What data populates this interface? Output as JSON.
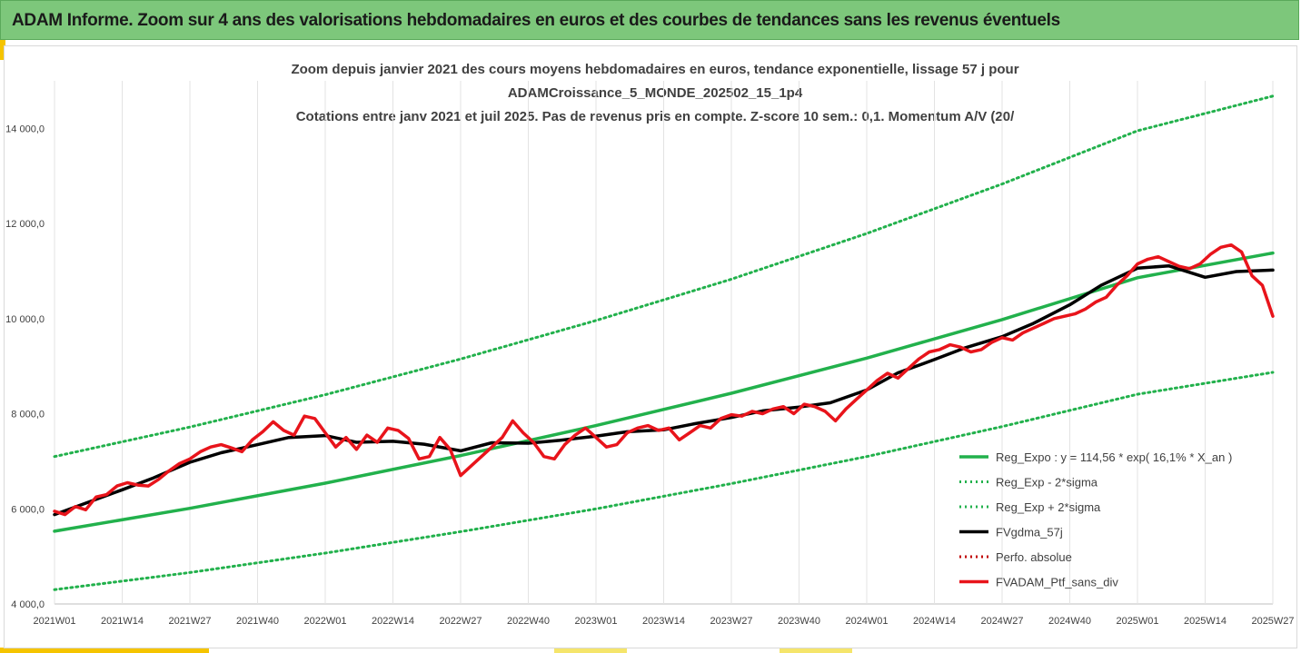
{
  "banner": {
    "title": "ADAM Informe. Zoom sur 4 ans des valorisations hebdomadaires en euros et des courbes de tendances sans les revenus éventuels"
  },
  "colors": {
    "banner_bg": "#7dc77b",
    "accent": "#f5c400",
    "trend_green": "#22b14c",
    "smooth_black": "#000000",
    "portfolio_red": "#e8141b",
    "perf_red": "#c00000"
  },
  "chart_data": {
    "type": "line",
    "title_lines": [
      "Zoom depuis janvier 2021 des cours moyens hebdomadaires  en euros, tendance exponentielle, lissage 57 j pour",
      "ADAMCroissance_5_MONDE_202502_15_1p4",
      "Cotations entre janv 2021 et juil 2025. Pas de revenus pris en compte. Z-score 10 sem.: 0,1. Momentum A/V (20/"
    ],
    "x_tick_labels": [
      "2021W01",
      "2021W14",
      "2021W27",
      "2021W40",
      "2022W01",
      "2022W14",
      "2022W27",
      "2022W40",
      "2023W01",
      "2023W14",
      "2023W27",
      "2023W40",
      "2024W01",
      "2024W14",
      "2024W27",
      "2024W40",
      "2025W01",
      "2025W14",
      "2025W27"
    ],
    "y_tick_labels": [
      "4 000,0",
      "6 000,0",
      "8 000,0",
      "10 000,0",
      "12 000,0",
      "14 000,0"
    ],
    "y_ticks": [
      4000,
      6000,
      8000,
      10000,
      12000,
      14000
    ],
    "ylim": [
      4000,
      15000
    ],
    "x_range_weeks": [
      0,
      234
    ],
    "grid": "vertical",
    "legend_position": "bottom-right",
    "series": [
      {
        "name": "Reg_Expo : y = 114,56 * exp( 16,1% *  X_an )",
        "style": "solid-thick",
        "color": "#22b14c",
        "x": [
          0,
          26,
          52,
          78,
          104,
          130,
          156,
          182,
          208,
          234
        ],
        "values": [
          5530,
          6010,
          6540,
          7120,
          7750,
          8430,
          9170,
          9980,
          10860,
          11380
        ]
      },
      {
        "name": "Reg_Exp - 2*sigma",
        "style": "dotted",
        "color": "#22b14c",
        "x": [
          0,
          26,
          52,
          78,
          104,
          130,
          156,
          182,
          208,
          234
        ],
        "values": [
          4300,
          4660,
          5070,
          5520,
          6000,
          6530,
          7100,
          7730,
          8410,
          8870
        ]
      },
      {
        "name": "Reg_Exp + 2*sigma",
        "style": "dotted",
        "color": "#22b14c",
        "x": [
          0,
          26,
          52,
          78,
          104,
          130,
          156,
          182,
          208,
          234
        ],
        "values": [
          7100,
          7720,
          8400,
          9150,
          9960,
          10830,
          11790,
          12830,
          13950,
          14680
        ]
      },
      {
        "name": "FVgdma_57j",
        "style": "solid-thick",
        "color": "#000000",
        "x": [
          0,
          6,
          13,
          19,
          26,
          32,
          39,
          45,
          52,
          58,
          65,
          71,
          78,
          84,
          91,
          97,
          104,
          110,
          117,
          123,
          130,
          136,
          143,
          149,
          156,
          162,
          169,
          175,
          182,
          188,
          195,
          201,
          208,
          214,
          221,
          227,
          234
        ],
        "values": [
          5880,
          6120,
          6400,
          6650,
          6980,
          7180,
          7350,
          7500,
          7540,
          7400,
          7420,
          7360,
          7220,
          7390,
          7380,
          7440,
          7530,
          7620,
          7660,
          7790,
          7920,
          8060,
          8140,
          8230,
          8500,
          8860,
          9140,
          9390,
          9620,
          9900,
          10290,
          10700,
          11060,
          11110,
          10870,
          10990,
          11020
        ]
      },
      {
        "name": "Perfo. absolue",
        "style": "dotted",
        "color": "#c00000",
        "x": [],
        "values": []
      },
      {
        "name": "FVADAM_Ptf_sans_div",
        "style": "solid-thick",
        "color": "#e8141b",
        "x": [
          0,
          2,
          4,
          6,
          8,
          10,
          12,
          14,
          16,
          18,
          20,
          22,
          24,
          26,
          28,
          30,
          32,
          34,
          36,
          38,
          40,
          42,
          44,
          46,
          48,
          50,
          52,
          54,
          56,
          58,
          60,
          62,
          64,
          66,
          68,
          70,
          72,
          74,
          76,
          78,
          80,
          82,
          84,
          86,
          88,
          90,
          92,
          94,
          96,
          98,
          100,
          102,
          104,
          106,
          108,
          110,
          112,
          114,
          116,
          118,
          120,
          122,
          124,
          126,
          128,
          130,
          132,
          134,
          136,
          138,
          140,
          142,
          144,
          146,
          148,
          150,
          152,
          154,
          156,
          158,
          160,
          162,
          164,
          166,
          168,
          170,
          172,
          174,
          176,
          178,
          180,
          182,
          184,
          186,
          188,
          190,
          192,
          194,
          196,
          198,
          200,
          202,
          204,
          206,
          208,
          210,
          212,
          214,
          216,
          218,
          220,
          222,
          224,
          226,
          228,
          230,
          232,
          234
        ],
        "values": [
          5950,
          5880,
          6050,
          5980,
          6250,
          6300,
          6480,
          6550,
          6500,
          6480,
          6620,
          6800,
          6950,
          7050,
          7200,
          7300,
          7350,
          7280,
          7200,
          7450,
          7620,
          7830,
          7650,
          7550,
          7950,
          7900,
          7600,
          7300,
          7500,
          7250,
          7550,
          7400,
          7700,
          7650,
          7480,
          7050,
          7100,
          7500,
          7250,
          6700,
          6900,
          7100,
          7300,
          7500,
          7850,
          7600,
          7400,
          7100,
          7050,
          7350,
          7550,
          7700,
          7500,
          7300,
          7350,
          7600,
          7700,
          7750,
          7650,
          7700,
          7450,
          7600,
          7750,
          7700,
          7900,
          7980,
          7950,
          8050,
          8000,
          8100,
          8150,
          8000,
          8200,
          8150,
          8050,
          7850,
          8100,
          8300,
          8500,
          8700,
          8850,
          8750,
          8950,
          9150,
          9300,
          9350,
          9450,
          9400,
          9300,
          9350,
          9500,
          9600,
          9550,
          9700,
          9800,
          9900,
          10000,
          10050,
          10100,
          10200,
          10350,
          10450,
          10700,
          10900,
          11150,
          11250,
          11300,
          11200,
          11100,
          11050,
          11150,
          11350,
          11500,
          11550,
          11400,
          10900,
          10700,
          10050
        ]
      }
    ]
  }
}
